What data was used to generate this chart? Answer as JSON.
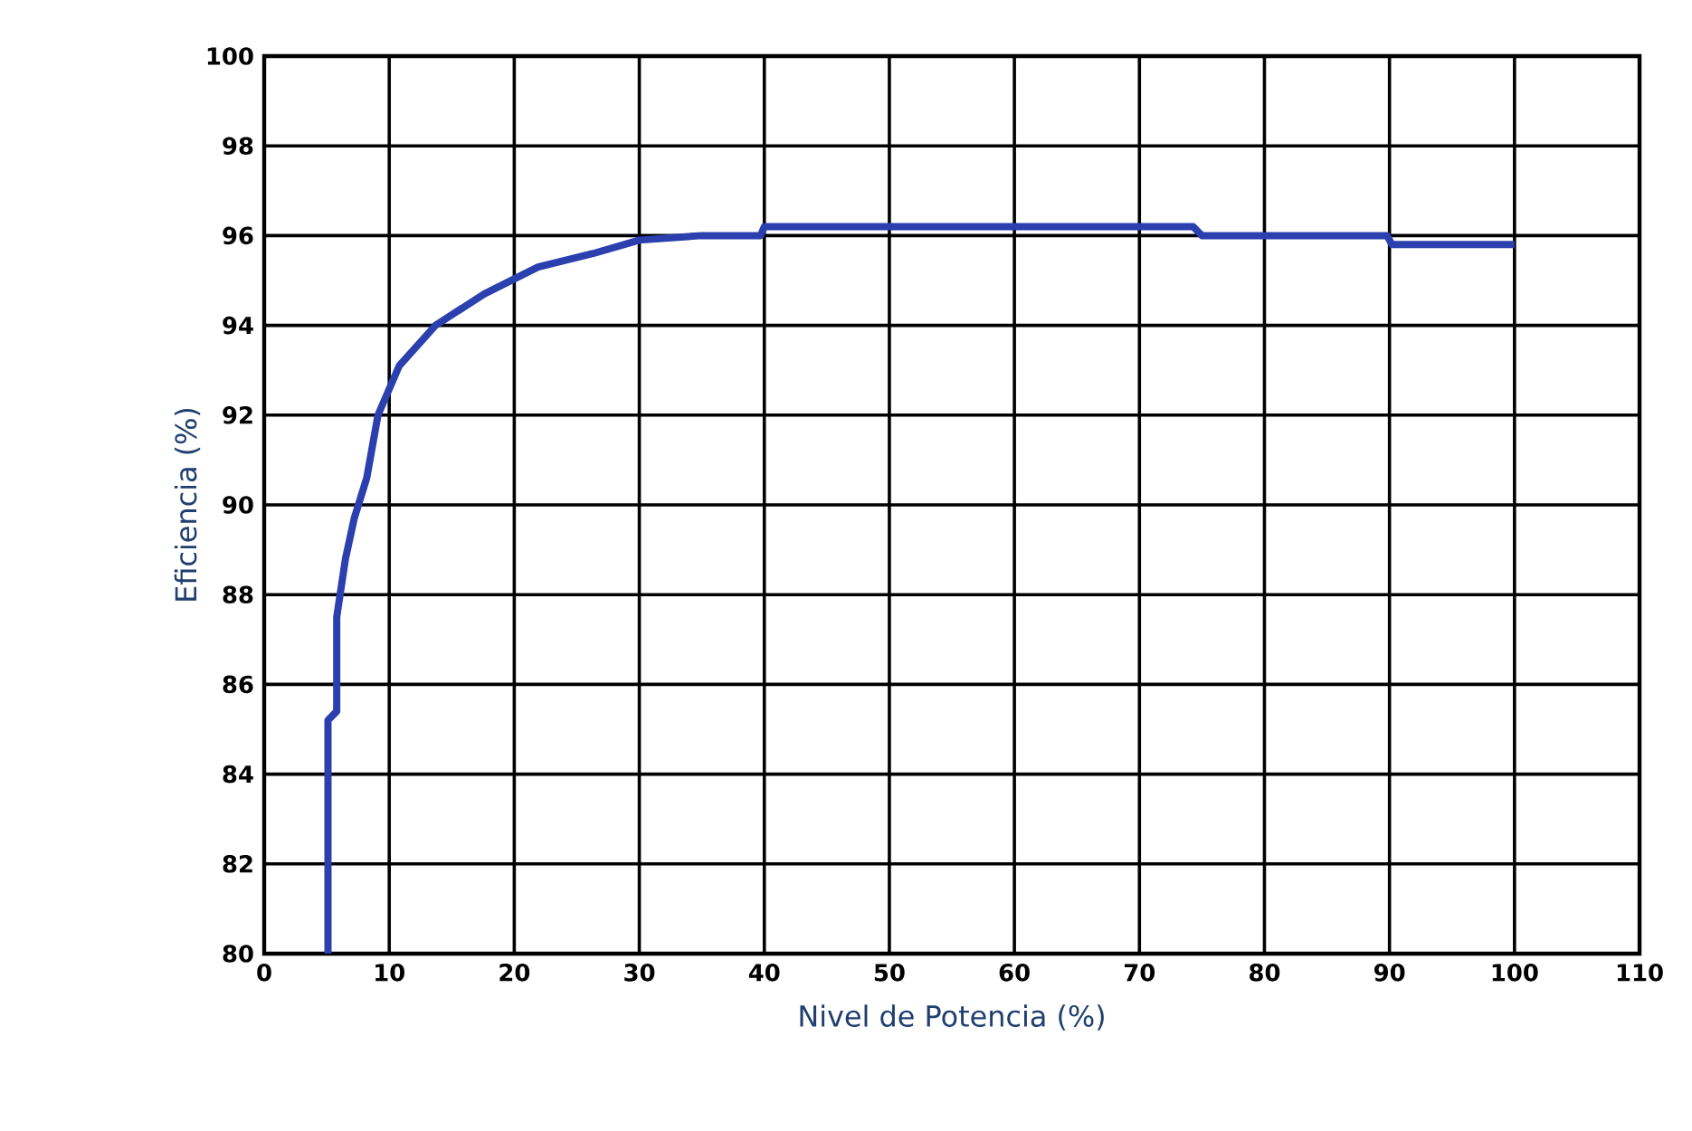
{
  "chart_data": {
    "type": "line",
    "xlabel": "Nivel de Potencia (%)",
    "ylabel": "Eficiencia (%)",
    "x": [
      5.1,
      5.1,
      5.8,
      5.8,
      6.5,
      7.2,
      8.2,
      9.1,
      10.8,
      13.7,
      17.6,
      21.9,
      26.3,
      30,
      35,
      39.7,
      40,
      74.3,
      75,
      89.8,
      90.2,
      100
    ],
    "series": [
      {
        "color": "#2b3fae",
        "values": [
          80,
          85.2,
          85.4,
          87.5,
          88.8,
          89.7,
          90.6,
          92.0,
          93.1,
          94.0,
          94.7,
          95.3,
          95.6,
          95.9,
          96.0,
          96.0,
          96.2,
          96.2,
          96.0,
          96.0,
          95.8,
          95.8
        ]
      }
    ],
    "xlim": [
      0,
      110
    ],
    "ylim": [
      80,
      100
    ],
    "xticks": [
      0,
      10,
      20,
      30,
      40,
      50,
      60,
      70,
      80,
      90,
      100,
      110
    ],
    "yticks": [
      80,
      82,
      84,
      86,
      88,
      90,
      92,
      94,
      96,
      98,
      100
    ],
    "grid": true,
    "marker": "none",
    "line_style": "solid"
  }
}
